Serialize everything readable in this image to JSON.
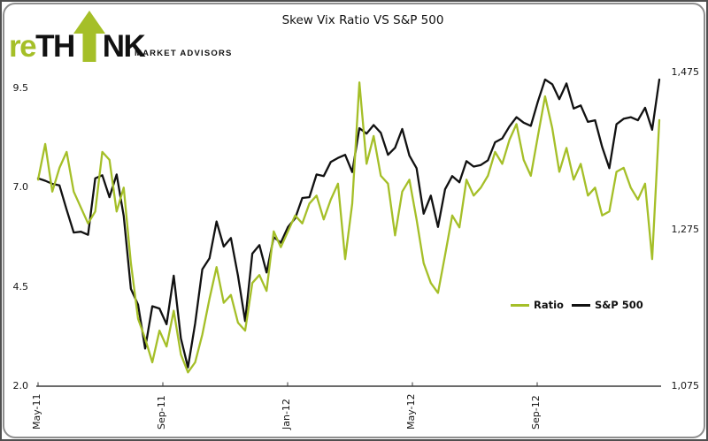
{
  "logo": {
    "re": "re",
    "th": "TH",
    "nk": "NK",
    "tagline": "MARKET ADVISORS",
    "green": "#a5bf28"
  },
  "chart_data": {
    "type": "line",
    "title": "Skew Vix Ratio VS S&P 500",
    "grid": false,
    "legend_position": "inside-right",
    "x_axis": {
      "tick_labels": [
        "May-11",
        "Sep-11",
        "Jan-12",
        "May-12",
        "Sep-12"
      ],
      "tick_month_offsets": [
        0,
        4,
        8,
        12,
        16
      ],
      "start": "May-11",
      "end": "Jan-13",
      "frequency": "weekly"
    },
    "left_axis": {
      "tick_labels": [
        "9.5",
        "7.0",
        "4.5",
        "2.0"
      ],
      "tick_values": [
        9.5,
        7.0,
        4.5,
        2.0
      ],
      "range": [
        2.0,
        9.5
      ],
      "for_series": "Ratio"
    },
    "right_axis": {
      "tick_labels": [
        "1,475",
        "1,275",
        "1,075"
      ],
      "tick_values": [
        1475,
        1275,
        1075
      ],
      "range": [
        1075,
        1475
      ],
      "for_series": "S&P 500"
    },
    "legend": [
      {
        "name": "Ratio",
        "color": "#a5bf28"
      },
      {
        "name": "S&P 500",
        "color": "#111111"
      }
    ],
    "series": [
      {
        "name": "Ratio",
        "axis": "left",
        "color": "#a5bf28",
        "values": [
          7.2,
          8.1,
          6.9,
          7.5,
          7.9,
          6.9,
          6.5,
          6.1,
          6.4,
          7.9,
          7.7,
          6.4,
          7.0,
          5.1,
          3.7,
          3.2,
          2.6,
          3.4,
          3.0,
          3.9,
          2.8,
          2.35,
          2.6,
          3.3,
          4.2,
          5.0,
          4.1,
          4.3,
          3.6,
          3.4,
          4.6,
          4.8,
          4.4,
          5.9,
          5.5,
          5.9,
          6.3,
          6.1,
          6.6,
          6.8,
          6.2,
          6.7,
          7.1,
          5.2,
          6.6,
          9.65,
          7.6,
          8.3,
          7.3,
          7.1,
          5.8,
          6.9,
          7.2,
          6.2,
          5.1,
          4.6,
          4.35,
          5.3,
          6.3,
          6.0,
          7.2,
          6.8,
          7.0,
          7.3,
          7.9,
          7.6,
          8.2,
          8.6,
          7.7,
          7.3,
          8.3,
          9.3,
          8.5,
          7.4,
          8.0,
          7.2,
          7.6,
          6.8,
          7.0,
          6.3,
          6.4,
          7.4,
          7.5,
          7.0,
          6.7,
          7.1,
          5.2,
          8.7
        ]
      },
      {
        "name": "S&P 500",
        "axis": "right",
        "color": "#111111",
        "values": [
          1340,
          1337,
          1333,
          1331,
          1300,
          1271,
          1272,
          1268,
          1340,
          1344,
          1316,
          1345,
          1292,
          1199,
          1179,
          1123,
          1177,
          1174,
          1154,
          1216,
          1136,
          1099,
          1155,
          1224,
          1238,
          1285,
          1253,
          1264,
          1216,
          1158,
          1244,
          1255,
          1220,
          1265,
          1258,
          1278,
          1289,
          1315,
          1316,
          1345,
          1343,
          1361,
          1366,
          1370,
          1348,
          1404,
          1397,
          1408,
          1398,
          1370,
          1379,
          1403,
          1369,
          1353,
          1295,
          1318,
          1278,
          1326,
          1343,
          1335,
          1362,
          1355,
          1357,
          1363,
          1386,
          1391,
          1406,
          1418,
          1411,
          1407,
          1438,
          1466,
          1460,
          1441,
          1461,
          1429,
          1433,
          1412,
          1414,
          1380,
          1353,
          1409,
          1416,
          1418,
          1414,
          1430,
          1402,
          1466
        ]
      }
    ]
  }
}
